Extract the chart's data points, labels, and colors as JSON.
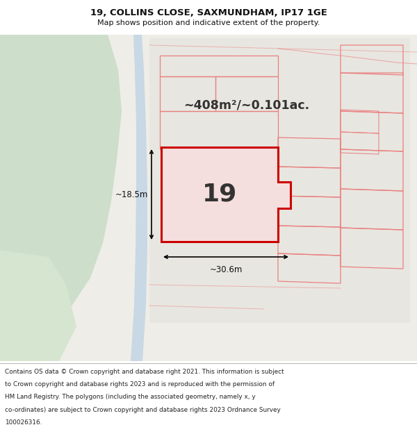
{
  "title_line1": "19, COLLINS CLOSE, SAXMUNDHAM, IP17 1GE",
  "title_line2": "Map shows position and indicative extent of the property.",
  "footer_lines": [
    "Contains OS data © Crown copyright and database right 2021. This information is subject",
    "to Crown copyright and database rights 2023 and is reproduced with the permission of",
    "HM Land Registry. The polygons (including the associated geometry, namely x, y",
    "co-ordinates) are subject to Crown copyright and database rights 2023 Ordnance Survey",
    "100026316."
  ],
  "area_text": "~408m²/~0.101ac.",
  "plot_number": "19",
  "dim_width": "~30.6m",
  "dim_height": "~18.5m",
  "map_bg": "#eeede8",
  "road_color": "#c8d8e4",
  "green_color": "#cddeca",
  "highlight_color": "#cc0000",
  "other_color": "#e88080",
  "white": "#ffffff"
}
